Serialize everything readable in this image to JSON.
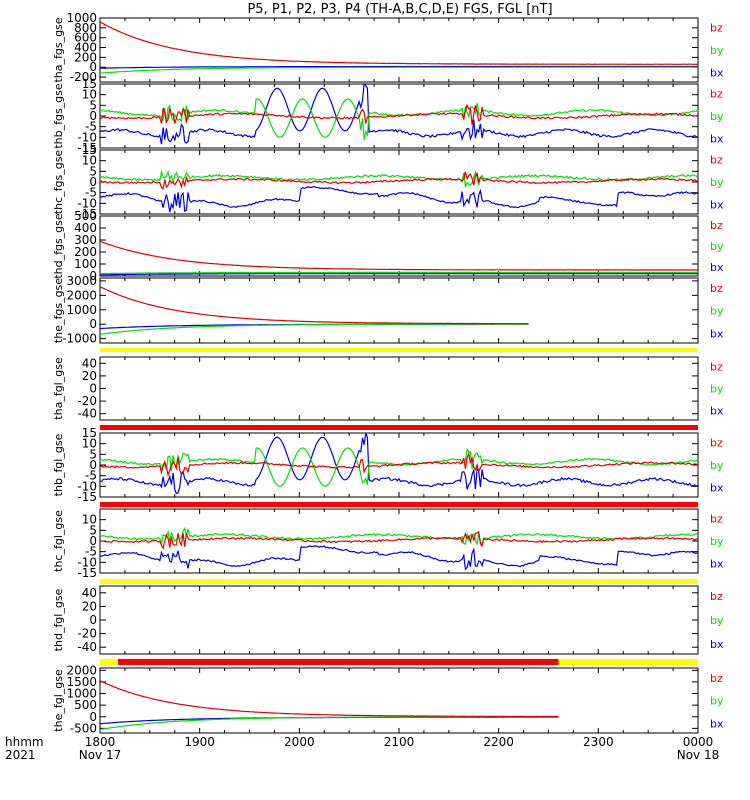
{
  "title": "P5, P1, P2, P3, P4 (TH-A,B,C,D,E) FGS, FGL [nT]",
  "colors": {
    "bz": "#e00000",
    "by": "#00e000",
    "bx": "#0000e0",
    "red_bar": "#ff0000",
    "yellow_bar": "#ffff00",
    "black_bar": "#000000"
  },
  "chart_data": {
    "type": "line",
    "x_axis": {
      "range_hours": [
        18,
        24
      ],
      "tick_values": [
        18,
        19,
        20,
        21,
        22,
        23,
        24
      ],
      "tick_labels": [
        "1800",
        "1900",
        "2000",
        "2100",
        "2200",
        "2300",
        "0000"
      ],
      "date_labels": [
        "Nov 17",
        "",
        "",
        "",
        "",
        "",
        "Nov 18"
      ],
      "corner_label_1": "hhmm",
      "corner_label_2": "2021"
    },
    "panels": [
      {
        "ylabel": "tha_fgs_gse",
        "ylim": [
          -300,
          1000
        ],
        "yticks": [
          1000,
          800,
          600,
          400,
          200,
          0,
          -200
        ],
        "legend": [
          "bz",
          "by",
          "bx"
        ],
        "data_end": 24,
        "kind": "decay",
        "series": [
          {
            "name": "bz",
            "start": 920,
            "end": 60
          },
          {
            "name": "by",
            "start": -120,
            "end": 0
          },
          {
            "name": "bx",
            "start": -20,
            "end": 15
          }
        ]
      },
      {
        "ylabel": "thb_fgs_gse",
        "ylim": [
          -15,
          15
        ],
        "yticks": [
          15,
          10,
          5,
          0,
          -5,
          -10,
          -15
        ],
        "legend": [
          "bz",
          "by",
          "bx"
        ],
        "data_end": 24,
        "kind": "wave"
      },
      {
        "ylabel": "thc_fgs_gse",
        "ylim": [
          -15,
          15
        ],
        "yticks": [
          15,
          10,
          5,
          0,
          -5,
          -10,
          -15
        ],
        "legend": [
          "bz",
          "by",
          "bx"
        ],
        "data_end": 24,
        "kind": "quiet"
      },
      {
        "ylabel": "thd_fgs_gse",
        "ylim": [
          0,
          500
        ],
        "yticks": [
          500,
          400,
          300,
          200,
          100,
          0
        ],
        "legend": [
          "bz",
          "by",
          "bx"
        ],
        "data_end": 24,
        "kind": "decay",
        "series": [
          {
            "name": "bz",
            "start": 290,
            "end": 50
          },
          {
            "name": "by",
            "start": 20,
            "end": 30
          },
          {
            "name": "bx",
            "start": 10,
            "end": 20
          }
        ]
      },
      {
        "ylabel": "the_fgs_gse",
        "ylim": [
          -1300,
          3200
        ],
        "yticks": [
          3000,
          2000,
          1000,
          0,
          -1000
        ],
        "legend": [
          "bz",
          "by",
          "bx"
        ],
        "data_end": 22.3,
        "kind": "decay",
        "series": [
          {
            "name": "bz",
            "start": 2600,
            "end": 30
          },
          {
            "name": "by",
            "start": -700,
            "end": 10
          },
          {
            "name": "bx",
            "start": -300,
            "end": 0
          }
        ]
      },
      {
        "ylabel": "tha_fgl_gse",
        "ylim": [
          -50,
          50
        ],
        "yticks": [
          40,
          20,
          0,
          -20,
          -40
        ],
        "legend": [
          "bz",
          "by",
          "bx"
        ],
        "data_end": 18,
        "kind": "empty"
      },
      {
        "ylabel": "thb_fgl_gse",
        "ylim": [
          -15,
          15
        ],
        "yticks": [
          15,
          10,
          5,
          0,
          -5,
          -10,
          -15
        ],
        "legend": [
          "bz",
          "by",
          "bx"
        ],
        "data_end": 24,
        "kind": "wave"
      },
      {
        "ylabel": "thc_fgl_gse",
        "ylim": [
          -15,
          15
        ],
        "yticks": [
          10,
          5,
          0,
          -5,
          -10,
          -15
        ],
        "legend": [
          "bz",
          "by",
          "bx"
        ],
        "data_end": 24,
        "kind": "quiet"
      },
      {
        "ylabel": "thd_fgl_gse",
        "ylim": [
          -50,
          50
        ],
        "yticks": [
          40,
          20,
          0,
          -20,
          -40
        ],
        "legend": [
          "bz",
          "by",
          "bx"
        ],
        "data_end": 18,
        "kind": "empty"
      },
      {
        "ylabel": "the_fgl_gse",
        "ylim": [
          -700,
          2100
        ],
        "yticks": [
          2000,
          1500,
          1000,
          500,
          0,
          -500
        ],
        "legend": [
          "bz",
          "by",
          "bx"
        ],
        "data_end": 22.6,
        "kind": "decay",
        "series": [
          {
            "name": "bz",
            "start": 1550,
            "end": 10
          },
          {
            "name": "by",
            "start": -550,
            "end": 0
          },
          {
            "name": "bx",
            "start": -300,
            "end": -20
          }
        ]
      }
    ],
    "mode_bars": [
      {
        "panel": 5,
        "segments": [
          {
            "from": 18,
            "to": 24,
            "color": "yellow"
          }
        ]
      },
      {
        "panel": 6,
        "segments": [
          {
            "from": 18,
            "to": 24,
            "color": "red"
          }
        ]
      },
      {
        "panel": 7,
        "segments": [
          {
            "from": 18,
            "to": 24,
            "color": "red"
          }
        ]
      },
      {
        "panel": 8,
        "segments": [
          {
            "from": 18,
            "to": 24,
            "color": "yellow"
          }
        ]
      },
      {
        "panel": 9,
        "segments": [
          {
            "from": 18,
            "to": 18.18,
            "color": "yellow"
          },
          {
            "from": 18.18,
            "to": 22.6,
            "color": "red"
          },
          {
            "from": 22.6,
            "to": 24,
            "color": "yellow"
          }
        ]
      }
    ]
  }
}
